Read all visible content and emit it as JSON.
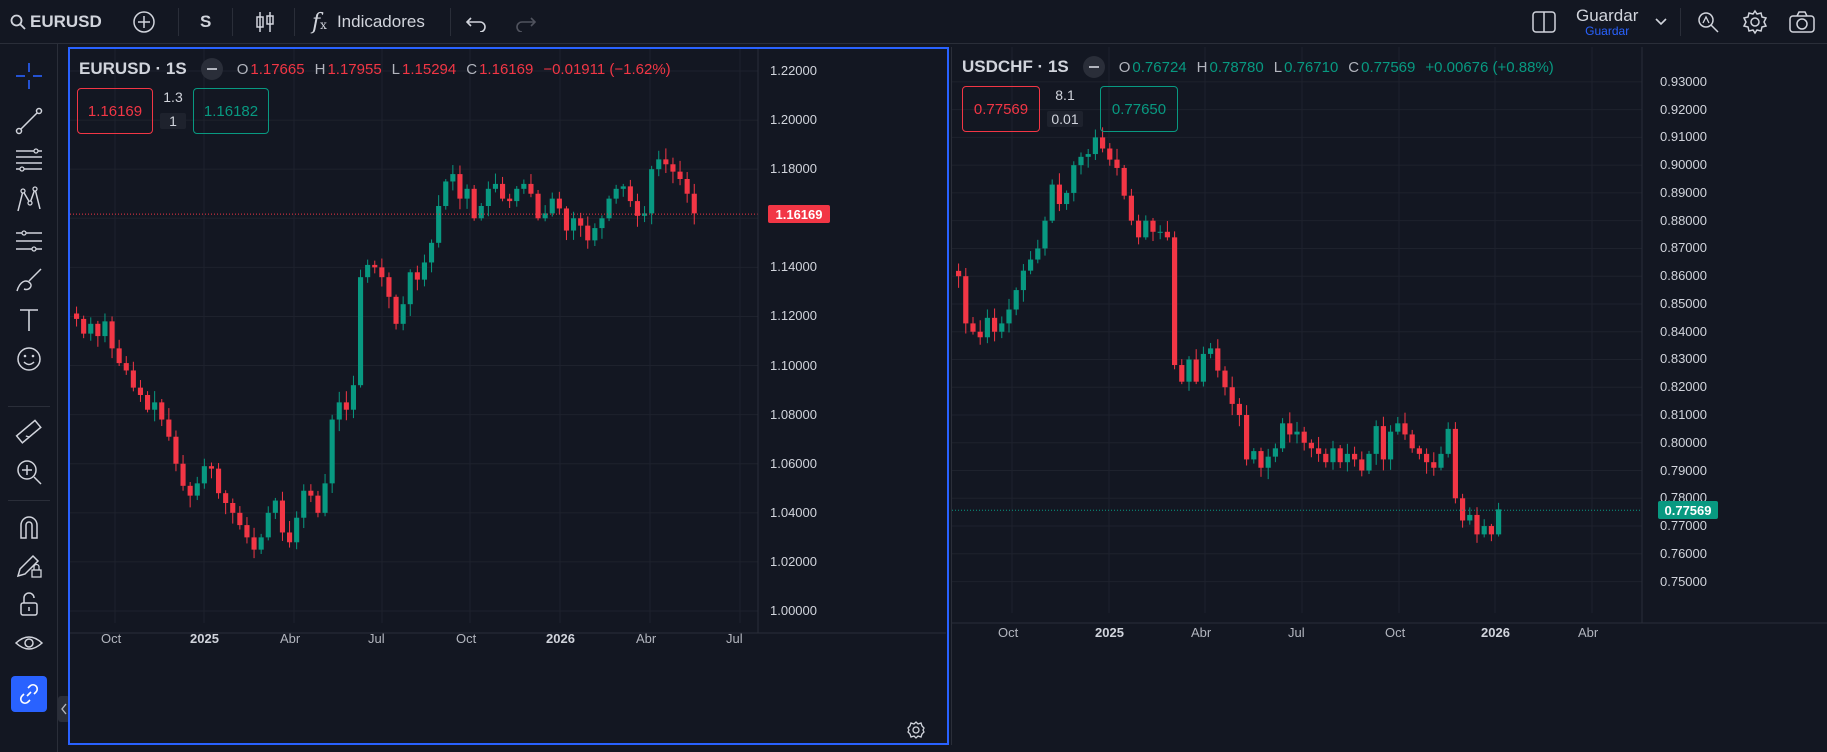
{
  "toolbar": {
    "symbol": "EURUSD",
    "interval": "S",
    "indicators_label": "Indicadores",
    "save_label": "Guardar",
    "save_sublabel": "Guardar"
  },
  "colors": {
    "up": "#089981",
    "down": "#f23645",
    "accent": "#2962ff",
    "background": "#131722"
  },
  "charts": [
    {
      "symbol_title": "EURUSD · 1S",
      "legend": {
        "o_label": "O",
        "o": "1.17665",
        "h_label": "H",
        "h": "1.17955",
        "l_label": "L",
        "l": "1.15294",
        "c_label": "C",
        "c": "1.16169",
        "change": "−0.01911 (−1.62%)"
      },
      "sell_price": "1.16169",
      "buy_price": "1.16182",
      "spread": "1.3",
      "quantity": "1",
      "last_price_label": "1.16169",
      "last_price": 1.16169,
      "y_ticks": [
        "1.22000",
        "1.20000",
        "1.18000",
        "1.16000",
        "1.14000",
        "1.12000",
        "1.10000",
        "1.08000",
        "1.06000",
        "1.04000",
        "1.02000",
        "1.00000"
      ],
      "x_ticks": [
        {
          "label": "Oct",
          "strong": false
        },
        {
          "label": "2025",
          "strong": true
        },
        {
          "label": "Abr",
          "strong": false
        },
        {
          "label": "Jul",
          "strong": false
        },
        {
          "label": "Oct",
          "strong": false
        },
        {
          "label": "2026",
          "strong": true
        },
        {
          "label": "Abr",
          "strong": false
        },
        {
          "label": "Jul",
          "strong": false
        }
      ],
      "ylim": [
        1.0,
        1.22
      ]
    },
    {
      "symbol_title": "USDCHF · 1S",
      "legend": {
        "o_label": "O",
        "o": "0.76724",
        "h_label": "H",
        "h": "0.78780",
        "l_label": "L",
        "l": "0.76710",
        "c_label": "C",
        "c": "0.77569",
        "change": "+0.00676 (+0.88%)"
      },
      "sell_price": "0.77569",
      "buy_price": "0.77650",
      "spread": "8.1",
      "quantity": "0.01",
      "last_price_label": "0.77569",
      "last_price": 0.77569,
      "y_ticks": [
        "0.93000",
        "0.92000",
        "0.91000",
        "0.90000",
        "0.89000",
        "0.88000",
        "0.87000",
        "0.86000",
        "0.85000",
        "0.84000",
        "0.83000",
        "0.82000",
        "0.81000",
        "0.80000",
        "0.79000",
        "0.78000",
        "0.77000",
        "0.76000",
        "0.75000"
      ],
      "x_ticks": [
        {
          "label": "Oct",
          "strong": false
        },
        {
          "label": "2025",
          "strong": true
        },
        {
          "label": "Abr",
          "strong": false
        },
        {
          "label": "Jul",
          "strong": false
        },
        {
          "label": "Oct",
          "strong": false
        },
        {
          "label": "2026",
          "strong": true
        },
        {
          "label": "Abr",
          "strong": false
        }
      ],
      "ylim": [
        0.743,
        0.935
      ]
    }
  ],
  "chart_data": [
    {
      "type": "line",
      "title": "EURUSD · 1S",
      "series": [
        {
          "name": "EURUSD",
          "values": [
            1.119,
            1.113,
            1.117,
            1.112,
            1.118,
            1.107,
            1.101,
            1.098,
            1.091,
            1.088,
            1.082,
            1.085,
            1.078,
            1.071,
            1.06,
            1.051,
            1.047,
            1.052,
            1.059,
            1.058,
            1.048,
            1.044,
            1.04,
            1.035,
            1.03,
            1.025,
            1.03,
            1.04,
            1.045,
            1.032,
            1.028,
            1.038,
            1.049,
            1.047,
            1.04,
            1.052,
            1.078,
            1.085,
            1.082,
            1.092,
            1.136,
            1.141,
            1.14,
            1.136,
            1.128,
            1.117,
            1.125,
            1.138,
            1.135,
            1.142,
            1.15,
            1.165,
            1.175,
            1.178,
            1.168,
            1.172,
            1.16,
            1.165,
            1.172,
            1.174,
            1.168,
            1.167,
            1.172,
            1.174,
            1.17,
            1.16,
            1.162,
            1.168,
            1.164,
            1.155,
            1.16,
            1.157,
            1.151,
            1.156,
            1.16,
            1.168,
            1.172,
            1.173,
            1.167,
            1.161,
            1.162,
            1.18,
            1.184,
            1.182,
            1.179,
            1.176,
            1.17,
            1.162
          ]
        }
      ],
      "ylim": [
        1.0,
        1.22
      ]
    },
    {
      "type": "line",
      "title": "USDCHF · 1S",
      "series": [
        {
          "name": "USDCHF",
          "values": [
            0.86,
            0.843,
            0.84,
            0.838,
            0.845,
            0.84,
            0.843,
            0.848,
            0.855,
            0.862,
            0.866,
            0.87,
            0.88,
            0.893,
            0.886,
            0.89,
            0.9,
            0.903,
            0.904,
            0.91,
            0.906,
            0.902,
            0.899,
            0.889,
            0.88,
            0.874,
            0.88,
            0.876,
            0.876,
            0.874,
            0.828,
            0.822,
            0.83,
            0.822,
            0.832,
            0.834,
            0.826,
            0.82,
            0.814,
            0.81,
            0.794,
            0.797,
            0.791,
            0.795,
            0.798,
            0.807,
            0.803,
            0.804,
            0.8,
            0.798,
            0.796,
            0.793,
            0.798,
            0.793,
            0.796,
            0.794,
            0.79,
            0.796,
            0.806,
            0.794,
            0.804,
            0.807,
            0.803,
            0.798,
            0.796,
            0.793,
            0.791,
            0.796,
            0.805,
            0.78,
            0.772,
            0.774,
            0.767,
            0.77,
            0.767,
            0.776
          ]
        }
      ],
      "ylim": [
        0.743,
        0.935
      ]
    }
  ]
}
